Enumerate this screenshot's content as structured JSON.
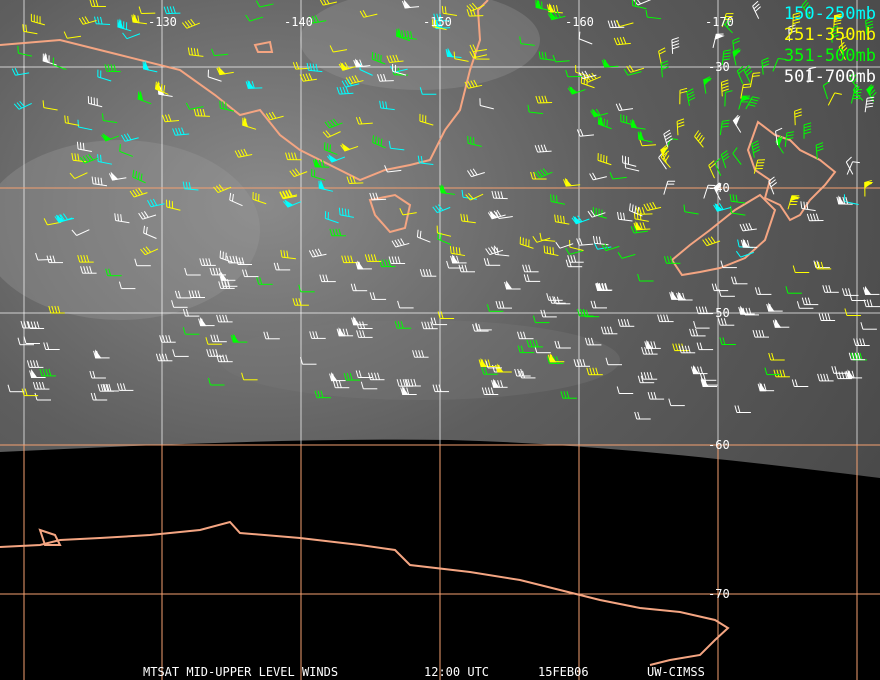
{
  "legend": [
    {
      "label": "150-250mb",
      "color": "#00ffff"
    },
    {
      "label": "251-350mb",
      "color": "#ffff00"
    },
    {
      "label": "351-500mb",
      "color": "#00ff00"
    },
    {
      "label": "501-700mb",
      "color": "#ffffff"
    }
  ],
  "longitude_labels": [
    "-130",
    "-140",
    "-150",
    "-160",
    "-170"
  ],
  "latitude_labels": [
    "-30",
    "-40",
    "-50",
    "-60",
    "-70"
  ],
  "caption": {
    "title": "MTSAT MID-UPPER LEVEL WINDS",
    "time": "12:00 UTC",
    "date": "15FEB06",
    "credit": "UW-CIMSS"
  },
  "colors": {
    "coastline": "#f4a582",
    "gridline_orange": "#f4a070",
    "gridline_white": "#ffffff",
    "space": "#000000"
  }
}
